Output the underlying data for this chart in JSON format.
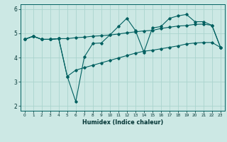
{
  "xlabel": "Humidex (Indice chaleur)",
  "xlim": [
    -0.5,
    23.5
  ],
  "ylim": [
    1.8,
    6.2
  ],
  "yticks": [
    2,
    3,
    4,
    5,
    6
  ],
  "xticks": [
    0,
    1,
    2,
    3,
    4,
    5,
    6,
    7,
    8,
    9,
    10,
    11,
    12,
    13,
    14,
    15,
    16,
    17,
    18,
    19,
    20,
    21,
    22,
    23
  ],
  "bg_color": "#cce8e4",
  "line_color": "#006060",
  "grid_color": "#aad4ce",
  "line1_y": [
    4.75,
    4.88,
    4.75,
    4.75,
    4.78,
    4.78,
    4.82,
    4.84,
    4.88,
    4.9,
    4.93,
    4.97,
    5.02,
    5.06,
    5.1,
    5.12,
    5.2,
    5.25,
    5.3,
    5.32,
    5.37,
    5.38,
    5.33,
    4.42
  ],
  "line2_y": [
    4.75,
    4.88,
    4.75,
    4.75,
    4.78,
    3.22,
    2.18,
    4.02,
    4.58,
    4.6,
    4.93,
    5.28,
    5.62,
    5.12,
    4.22,
    5.22,
    5.28,
    5.62,
    5.72,
    5.78,
    5.48,
    5.48,
    5.33,
    4.42
  ],
  "line3_y": [
    4.75,
    4.88,
    4.75,
    4.75,
    4.78,
    3.22,
    3.48,
    3.58,
    3.68,
    3.78,
    3.88,
    3.98,
    4.08,
    4.18,
    4.26,
    4.3,
    4.36,
    4.42,
    4.48,
    4.56,
    4.6,
    4.62,
    4.62,
    4.42
  ]
}
